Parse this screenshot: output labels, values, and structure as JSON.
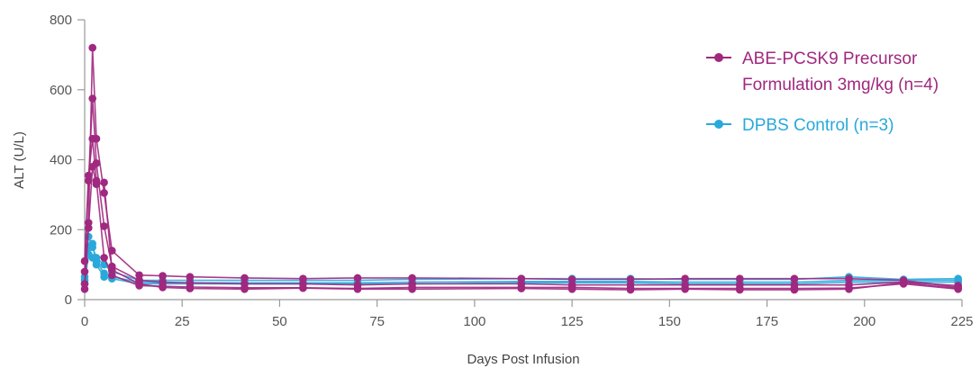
{
  "chart_data": {
    "type": "line",
    "title": "",
    "xlabel": "Days Post Infusion",
    "ylabel": "ALT (U/L)",
    "xlim": [
      0,
      225
    ],
    "ylim": [
      0,
      800
    ],
    "xticks": [
      0,
      25,
      50,
      75,
      100,
      125,
      150,
      175,
      200,
      225
    ],
    "yticks": [
      0,
      200,
      400,
      600,
      800
    ],
    "grid": false,
    "legend_position": "top-right",
    "groups": [
      {
        "name": "ABE-PCSK9 Precursor Formulation 3mg/kg (n=4)",
        "legend_lines": [
          "ABE-PCSK9 Precursor",
          "Formulation 3mg/kg (n=4)"
        ],
        "color": "#a0287f",
        "series": [
          {
            "x": [
              0,
              1,
              2,
              3,
              5,
              7,
              14,
              20,
              27,
              41,
              56,
              70,
              84,
              112,
              125,
              140,
              154,
              168,
              182,
              196,
              210,
              224
            ],
            "y": [
              30,
              220,
              720,
              460,
              305,
              140,
              70,
              68,
              65,
              62,
              60,
              62,
              62,
              60,
              58,
              58,
              60,
              60,
              60,
              60,
              55,
              35
            ]
          },
          {
            "x": [
              0,
              1,
              2,
              3,
              5,
              7,
              14,
              20,
              27,
              41,
              56,
              70,
              84,
              112,
              125,
              140,
              154,
              168,
              182,
              196,
              210,
              224
            ],
            "y": [
              80,
              340,
              575,
              390,
              210,
              95,
              55,
              50,
              48,
              45,
              45,
              42,
              45,
              45,
              42,
              42,
              42,
              42,
              42,
              42,
              50,
              40
            ]
          },
          {
            "x": [
              0,
              1,
              2,
              3,
              5,
              7,
              14,
              20,
              27,
              41,
              56,
              70,
              84,
              112,
              125,
              140,
              154,
              168,
              182,
              196,
              210,
              224
            ],
            "y": [
              110,
              355,
              460,
              340,
              120,
              70,
              40,
              38,
              36,
              34,
              34,
              32,
              35,
              35,
              35,
              32,
              32,
              32,
              32,
              33,
              45,
              30
            ]
          },
          {
            "x": [
              0,
              1,
              2,
              3,
              5,
              7,
              14,
              20,
              27,
              41,
              56,
              70,
              84,
              112,
              125,
              140,
              154,
              168,
              182,
              196,
              210,
              224
            ],
            "y": [
              45,
              205,
              380,
              330,
              335,
              85,
              45,
              35,
              32,
              30,
              33,
              30,
              30,
              32,
              30,
              28,
              30,
              28,
              28,
              30,
              48,
              32
            ]
          }
        ]
      },
      {
        "name": "DPBS Control (n=3)",
        "legend_lines": [
          "DPBS Control (n=3)"
        ],
        "color": "#29a9db",
        "series": [
          {
            "x": [
              0,
              1,
              2,
              3,
              5,
              7,
              14,
              20,
              27,
              41,
              56,
              70,
              84,
              112,
              125,
              140,
              154,
              168,
              182,
              196,
              210,
              224
            ],
            "y": [
              65,
              180,
              150,
              120,
              100,
              80,
              55,
              55,
              55,
              55,
              55,
              55,
              58,
              60,
              60,
              60,
              58,
              58,
              58,
              65,
              58,
              60
            ]
          },
          {
            "x": [
              0,
              1,
              2,
              3,
              5,
              7,
              14,
              20,
              27,
              41,
              56,
              70,
              84,
              112,
              125,
              140,
              154,
              168,
              182,
              196,
              210,
              224
            ],
            "y": [
              55,
              150,
              120,
              110,
              75,
              65,
              50,
              48,
              48,
              48,
              48,
              48,
              50,
              52,
              52,
              52,
              50,
              50,
              50,
              55,
              55,
              55
            ]
          },
          {
            "x": [
              0,
              1,
              2,
              3,
              5,
              7,
              14,
              20,
              27,
              41,
              56,
              70,
              84,
              112,
              125,
              140,
              154,
              168,
              182,
              196,
              210,
              224
            ],
            "y": [
              45,
              130,
              160,
              100,
              65,
              60,
              45,
              45,
              45,
              45,
              45,
              45,
              45,
              48,
              48,
              48,
              45,
              45,
              45,
              50,
              50,
              50
            ]
          }
        ]
      }
    ]
  }
}
